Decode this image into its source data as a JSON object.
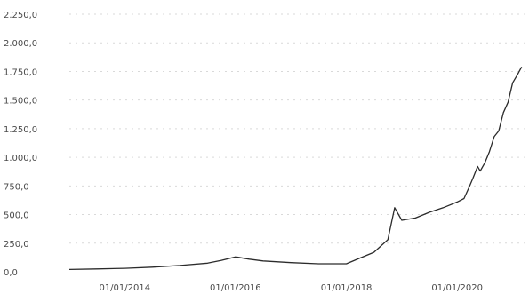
{
  "chart_data": {
    "type": "line",
    "title": "",
    "xlabel": "",
    "ylabel": "",
    "grid": true,
    "legend": "none",
    "line_color": "#2b2b2b",
    "grid_color": "#d9d9d9",
    "ylim": [
      0,
      2250
    ],
    "xlim": [
      "2013-01-01",
      "2021-04-01"
    ],
    "y_ticks": [
      {
        "value": 0,
        "label": "0,0"
      },
      {
        "value": 250,
        "label": "250,0"
      },
      {
        "value": 500,
        "label": "500,0"
      },
      {
        "value": 750,
        "label": "750,0"
      },
      {
        "value": 1000,
        "label": "1.000,0"
      },
      {
        "value": 1250,
        "label": "1.250,0"
      },
      {
        "value": 1500,
        "label": "1.500,0"
      },
      {
        "value": 1750,
        "label": "1.750,0"
      },
      {
        "value": 2000,
        "label": "2.000,0"
      },
      {
        "value": 2250,
        "label": "2.250,0"
      }
    ],
    "x_ticks": [
      {
        "value": "2014-01-01",
        "label": "01/01/2014"
      },
      {
        "value": "2016-01-01",
        "label": "01/01/2016"
      },
      {
        "value": "2018-01-01",
        "label": "01/01/2018"
      },
      {
        "value": "2020-01-01",
        "label": "01/01/2020"
      }
    ],
    "series": [
      {
        "x": [
          "2013-01-01",
          "2013-07-01",
          "2014-01-01",
          "2014-07-01",
          "2015-01-01",
          "2015-07-01",
          "2015-10-01",
          "2016-01-01",
          "2016-04-01",
          "2016-07-01",
          "2017-01-01",
          "2017-07-01",
          "2018-01-01",
          "2018-04-01",
          "2018-07-01",
          "2018-10-01",
          "2018-11-15",
          "2019-01-01",
          "2019-04-01",
          "2019-07-01",
          "2019-10-01",
          "2020-01-01",
          "2020-02-15",
          "2020-03-20",
          "2020-04-15",
          "2020-05-15",
          "2020-06-01",
          "2020-07-01",
          "2020-08-01",
          "2020-09-01",
          "2020-10-01",
          "2020-11-01",
          "2020-12-01",
          "2021-01-01",
          "2021-02-01",
          "2021-03-01"
        ],
        "values": [
          20,
          25,
          30,
          40,
          55,
          75,
          100,
          130,
          110,
          95,
          80,
          70,
          70,
          120,
          170,
          280,
          560,
          450,
          470,
          520,
          560,
          610,
          640,
          740,
          820,
          920,
          880,
          950,
          1050,
          1180,
          1230,
          1390,
          1480,
          1650,
          1720,
          1790
        ]
      }
    ]
  }
}
